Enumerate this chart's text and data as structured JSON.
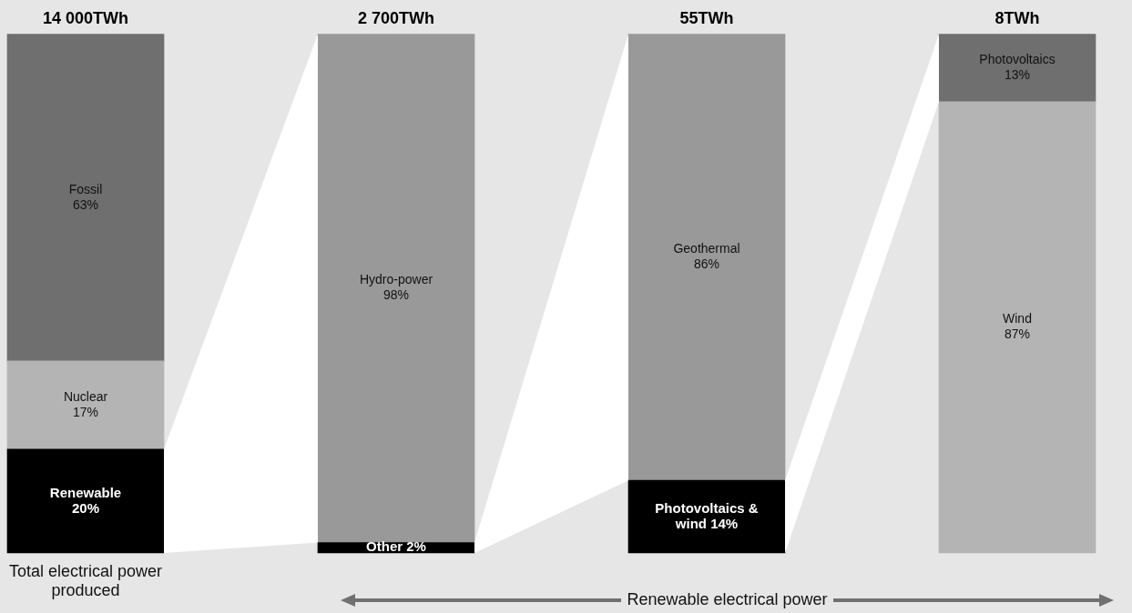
{
  "chart_data": {
    "type": "bar",
    "stacked": true,
    "categories": [
      "14 000TWh",
      "2 700TWh",
      "55TWh",
      "8TWh"
    ],
    "series": [
      {
        "name": "Renewable",
        "color": "#000000",
        "values": [
          20,
          null,
          null,
          null
        ],
        "value_labels": [
          "20%",
          null,
          null,
          null
        ]
      },
      {
        "name": "Nuclear",
        "color": "#b4b4b4",
        "values": [
          17,
          null,
          null,
          null
        ],
        "value_labels": [
          "17%",
          null,
          null,
          null
        ]
      },
      {
        "name": "Fossil",
        "color": "#6f6f6f",
        "values": [
          63,
          null,
          null,
          null
        ],
        "value_labels": [
          "63%",
          null,
          null,
          null
        ]
      },
      {
        "name": "Other",
        "color": "#000000",
        "values": [
          null,
          2,
          null,
          null
        ],
        "value_labels": [
          null,
          "2%",
          null,
          null
        ]
      },
      {
        "name": "Hydro-power",
        "color": "#999999",
        "values": [
          null,
          98,
          null,
          null
        ],
        "value_labels": [
          null,
          "98%",
          null,
          null
        ]
      },
      {
        "name": "Photovoltaics & wind",
        "color": "#000000",
        "values": [
          null,
          null,
          14,
          null
        ],
        "value_labels": [
          null,
          null,
          "14%",
          null
        ]
      },
      {
        "name": "Geothermal",
        "color": "#999999",
        "values": [
          null,
          null,
          86,
          null
        ],
        "value_labels": [
          null,
          null,
          "86%",
          null
        ]
      },
      {
        "name": "Wind",
        "color": "#b4b4b4",
        "values": [
          null,
          null,
          null,
          87
        ],
        "value_labels": [
          null,
          null,
          null,
          "87%"
        ]
      },
      {
        "name": "Photovoltaics",
        "color": "#6f6f6f",
        "values": [
          null,
          null,
          null,
          13
        ],
        "value_labels": [
          null,
          null,
          null,
          "13%"
        ]
      }
    ],
    "annotations": [
      "Total electrical power produced",
      "Renewable electrical power"
    ],
    "legend": false,
    "grid": false,
    "tick_labels": "x"
  }
}
